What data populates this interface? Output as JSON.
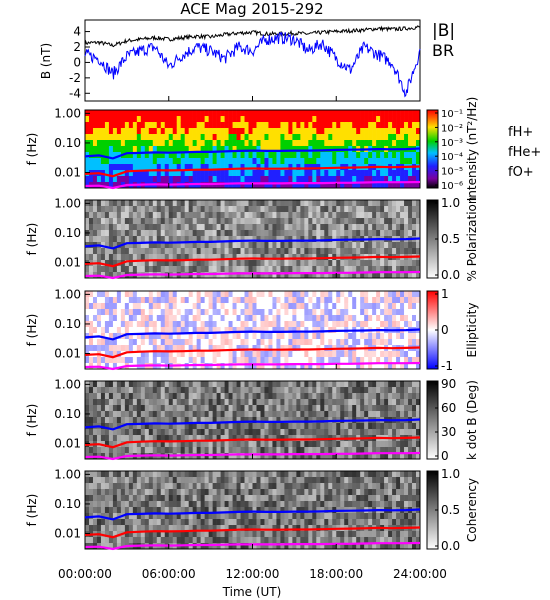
{
  "chart_data": {
    "title": "ACE Mag 2015-292",
    "type": "line",
    "x_axis": {
      "label": "Time (UT)",
      "range_hours": [
        0,
        24
      ],
      "tick_labels": [
        "00:00:00",
        "06:00:00",
        "12:00:00",
        "18:00:00",
        "24:00:00"
      ]
    },
    "panels": [
      {
        "name": "field",
        "type": "line",
        "ylabel": "B (nT)",
        "ylim": [
          -5,
          5.5
        ],
        "yticks": [
          4,
          2,
          0,
          -2,
          -4
        ],
        "series": [
          {
            "name": "|B|",
            "color": "#000000",
            "x": [
              0,
              1,
              2,
              3,
              4,
              5,
              6,
              7,
              8,
              9,
              10,
              11,
              12,
              13,
              14,
              15,
              16,
              17,
              18,
              19,
              20,
              21,
              22,
              23,
              24
            ],
            "y": [
              2.5,
              2.6,
              2.2,
              2.8,
              3.0,
              3.2,
              3.0,
              3.2,
              3.4,
              3.3,
              3.6,
              3.8,
              3.9,
              3.7,
              3.7,
              3.8,
              3.7,
              3.9,
              4.0,
              4.1,
              4.2,
              4.4,
              4.3,
              4.4,
              4.6
            ]
          },
          {
            "name": "BR",
            "color": "#0000ff",
            "x": [
              0,
              1,
              2,
              3,
              4,
              5,
              6,
              7,
              8,
              9,
              10,
              11,
              12,
              13,
              14,
              15,
              16,
              17,
              18,
              19,
              20,
              21,
              22,
              23,
              24
            ],
            "y": [
              1.0,
              0.5,
              -1.5,
              0.8,
              1.5,
              2.0,
              -0.5,
              1.0,
              2.0,
              1.5,
              0.5,
              2.0,
              1.5,
              3.0,
              3.2,
              3.0,
              1.5,
              2.5,
              0.5,
              -1.0,
              2.0,
              1.0,
              0.0,
              -4.0,
              1.5
            ]
          }
        ]
      },
      {
        "name": "intensity",
        "type": "heatmap",
        "ylabel": "f (Hz)",
        "ytick_labels": [
          "1.00",
          "0.10",
          "0.01"
        ],
        "colorbar": {
          "label": "Intensity (nT²/Hz)",
          "tick_labels": [
            "10⁻¹",
            "10⁻²",
            "10⁻³",
            "10⁻⁴",
            "10⁻⁵",
            "10⁻⁶"
          ]
        }
      },
      {
        "name": "polarization",
        "type": "heatmap",
        "ylabel": "f (Hz)",
        "ytick_labels": [
          "1.00",
          "0.10",
          "0.01"
        ],
        "colorbar": {
          "label": "% Polarization",
          "tick_labels": [
            "1.0",
            "0.5",
            "0.0"
          ]
        }
      },
      {
        "name": "ellipticity",
        "type": "heatmap",
        "ylabel": "f (Hz)",
        "ytick_labels": [
          "1.00",
          "0.10",
          "0.01"
        ],
        "colorbar": {
          "label": "Ellipticity",
          "tick_labels": [
            "1",
            "0",
            "-1"
          ]
        }
      },
      {
        "name": "kdotb",
        "type": "heatmap",
        "ylabel": "f (Hz)",
        "ytick_labels": [
          "1.00",
          "0.10",
          "0.01"
        ],
        "colorbar": {
          "label": "k dot B (Deg)",
          "tick_labels": [
            "90",
            "60",
            "30",
            "0"
          ]
        }
      },
      {
        "name": "coherency",
        "type": "heatmap",
        "ylabel": "f (Hz)",
        "ytick_labels": [
          "1.00",
          "0.10",
          "0.01"
        ],
        "colorbar": {
          "label": "Coherency",
          "tick_labels": [
            "1.0",
            "0.5",
            "0.0"
          ]
        }
      }
    ],
    "gyrofrequency_lines": {
      "x": [
        0,
        1,
        2,
        3,
        4,
        5,
        6,
        7,
        8,
        9,
        10,
        11,
        12,
        13,
        14,
        15,
        16,
        17,
        18,
        19,
        20,
        21,
        22,
        23,
        24
      ],
      "fH": [
        0.035,
        0.038,
        0.03,
        0.045,
        0.046,
        0.048,
        0.047,
        0.048,
        0.05,
        0.05,
        0.052,
        0.054,
        0.055,
        0.054,
        0.054,
        0.055,
        0.055,
        0.056,
        0.058,
        0.059,
        0.06,
        0.062,
        0.061,
        0.062,
        0.065
      ],
      "fHe": [
        0.009,
        0.0095,
        0.0075,
        0.011,
        0.0115,
        0.012,
        0.0118,
        0.012,
        0.0125,
        0.0125,
        0.013,
        0.0135,
        0.0137,
        0.0135,
        0.0135,
        0.0137,
        0.0137,
        0.014,
        0.0145,
        0.0147,
        0.015,
        0.0155,
        0.0152,
        0.0155,
        0.016
      ],
      "fO": [
        0.0035,
        0.0036,
        0.003,
        0.0038,
        0.0039,
        0.004,
        0.0039,
        0.004,
        0.0041,
        0.0041,
        0.0042,
        0.0043,
        0.0043,
        0.0043,
        0.0043,
        0.0044,
        0.0044,
        0.0044,
        0.0045,
        0.0045,
        0.0046,
        0.0047,
        0.0047,
        0.0047,
        0.0048
      ]
    },
    "legend": {
      "field": [
        {
          "label": "|B|",
          "color": "#000000"
        },
        {
          "label": "BR",
          "color": "#0000ff"
        }
      ],
      "gyro": [
        {
          "label": "fH+",
          "color": "#0000ff"
        },
        {
          "label": "fHe+",
          "color": "#ff0000"
        },
        {
          "label": "fO+",
          "color": "#ff00ff"
        }
      ]
    }
  }
}
